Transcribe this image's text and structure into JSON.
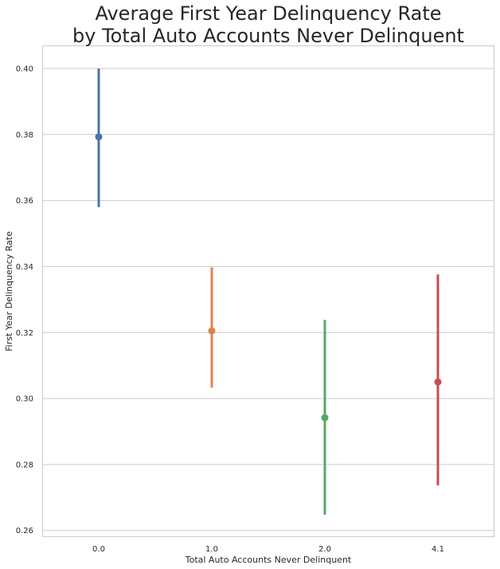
{
  "chart_data": {
    "type": "pointplot",
    "title": "Average First Year Delinquency Rate\nby Total Auto Accounts Never Delinquent",
    "xlabel": "Total Auto Accounts Never Delinquent",
    "ylabel": "First Year Delinquency Rate",
    "categories": [
      "0.0",
      "1.0",
      "2.0",
      "4.1"
    ],
    "series": [
      {
        "values": [
          0.3793,
          0.3205,
          0.2942,
          0.305
        ],
        "ci_low": [
          0.358,
          0.3033,
          0.2648,
          0.2737
        ],
        "ci_high": [
          0.4,
          0.3397,
          0.3238,
          0.3376
        ],
        "colors": [
          "#4c72b0",
          "#dd8452",
          "#55a868",
          "#c44e52"
        ]
      }
    ],
    "ylim": [
      0.258,
      0.407
    ],
    "yticks": [
      0.26,
      0.28,
      0.3,
      0.32,
      0.34,
      0.36,
      0.38,
      0.4
    ],
    "ytick_labels": [
      "0.26",
      "0.28",
      "0.30",
      "0.32",
      "0.34",
      "0.36",
      "0.38",
      "0.40"
    ],
    "grid": true,
    "grid_axis": "y",
    "gridline_color": "#cccccc",
    "background_color": "#ffffff",
    "spine_color": "#cccccc",
    "legend": false
  }
}
